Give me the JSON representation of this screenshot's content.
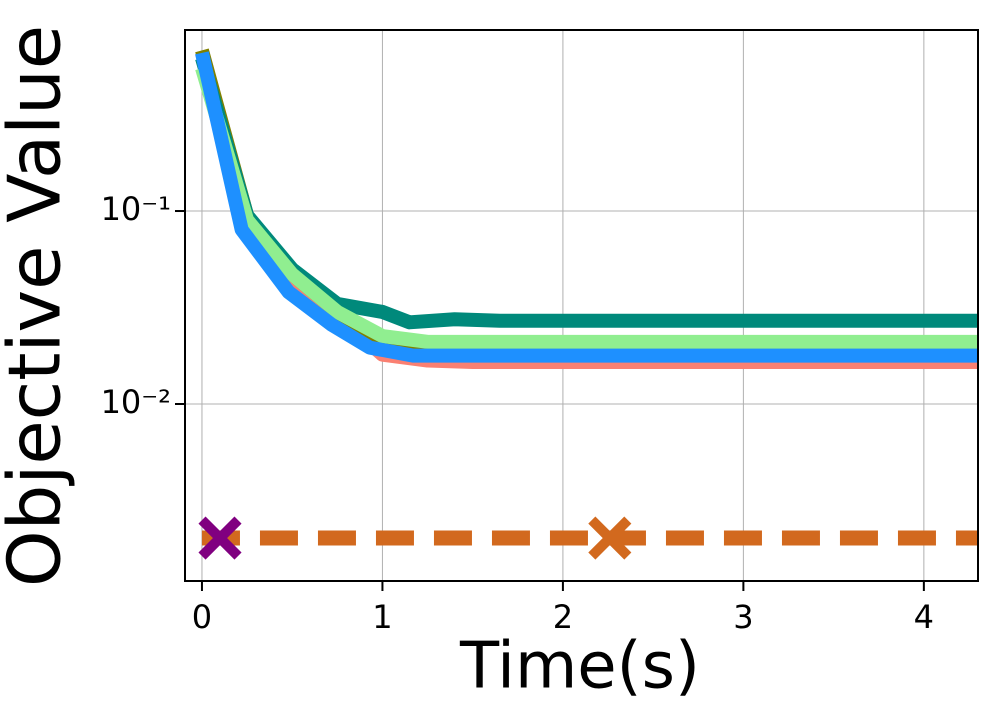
{
  "chart_data": {
    "type": "line",
    "xlabel": "Time(s)",
    "ylabel": "Objective Value",
    "log_y": true,
    "grid": true,
    "xlim": [
      -0.094,
      4.3
    ],
    "ylim": [
      0.00121,
      0.867
    ],
    "xticks": [
      0,
      1,
      2,
      3,
      4
    ],
    "yticks": [
      {
        "value": 0.1,
        "label": "10⁻¹"
      },
      {
        "value": 0.01,
        "label": "10⁻²"
      }
    ],
    "series": [
      {
        "color": "#fa8072",
        "style": "solid",
        "x": [
          0,
          0.25,
          0.5,
          0.75,
          1,
          1.25,
          1.5,
          2,
          3,
          4,
          4.3
        ],
        "values": [
          0.66,
          0.085,
          0.045,
          0.029,
          0.018,
          0.0168,
          0.0165,
          0.0165,
          0.0165,
          0.0165,
          0.0165
        ]
      },
      {
        "color": "#808000",
        "style": "solid",
        "x": [
          0,
          0.25,
          0.5,
          0.75,
          1,
          1.25,
          1.5,
          2,
          3,
          4,
          4.3
        ],
        "values": [
          0.68,
          0.095,
          0.047,
          0.03,
          0.021,
          0.0205,
          0.0205,
          0.0205,
          0.0205,
          0.0205,
          0.0205
        ]
      },
      {
        "color": "#00897b",
        "style": "solid",
        "x": [
          0,
          0.25,
          0.5,
          0.75,
          1,
          1.15,
          1.4,
          1.65,
          2,
          3,
          4,
          4.3
        ],
        "values": [
          0.62,
          0.095,
          0.05,
          0.033,
          0.03,
          0.0265,
          0.0275,
          0.027,
          0.027,
          0.027,
          0.027,
          0.027
        ]
      },
      {
        "color": "#90ee90",
        "style": "solid",
        "x": [
          0,
          0.25,
          0.5,
          0.75,
          1,
          1.25,
          1.5,
          2,
          3,
          4,
          4.3
        ],
        "values": [
          0.55,
          0.09,
          0.047,
          0.03,
          0.0225,
          0.021,
          0.021,
          0.021,
          0.021,
          0.021,
          0.021
        ]
      },
      {
        "color": "#1e90ff",
        "style": "solid",
        "x": [
          0,
          0.22,
          0.48,
          0.72,
          0.93,
          1.17,
          1.5,
          2,
          3,
          4,
          4.3
        ],
        "values": [
          0.66,
          0.08,
          0.038,
          0.0257,
          0.0196,
          0.0178,
          0.0178,
          0.0178,
          0.0178,
          0.0178,
          0.0178
        ]
      },
      {
        "color": "#d2691e",
        "style": "dashed",
        "x": [
          0,
          4.3
        ],
        "values": [
          0.00202,
          0.00202
        ]
      },
      {
        "color": "#800080",
        "style": "marker",
        "x": [
          0.1
        ],
        "values": [
          0.00202
        ]
      },
      {
        "color": "#d2691e",
        "style": "marker",
        "x": [
          2.26
        ],
        "values": [
          0.00202
        ]
      }
    ]
  }
}
